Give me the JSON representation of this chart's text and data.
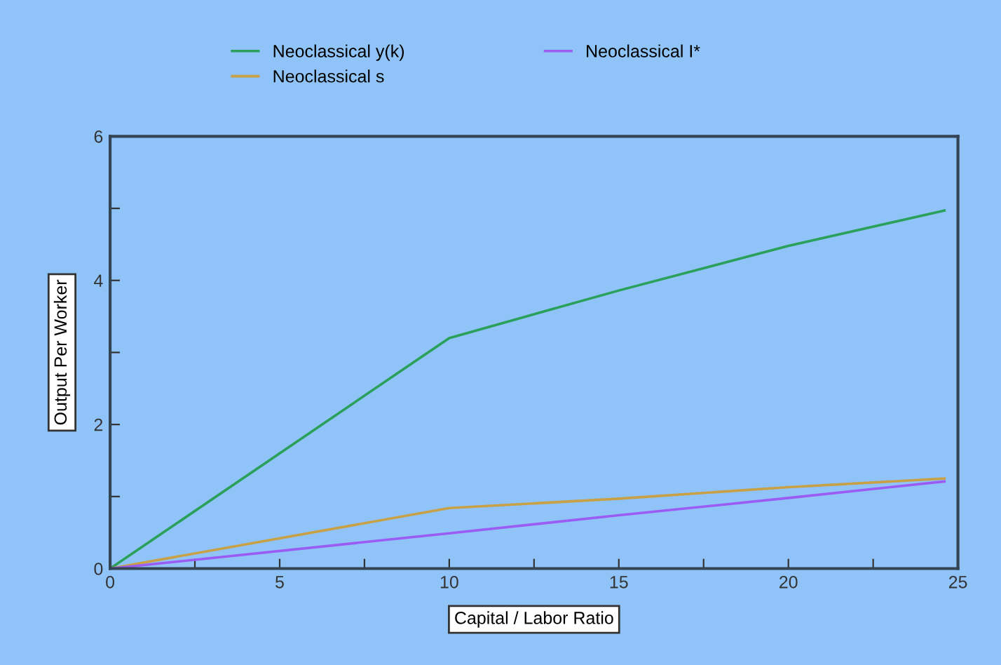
{
  "chart_data": {
    "type": "line",
    "xlabel": "Capital / Labor Ratio",
    "ylabel": "Output Per Worker",
    "x": [
      0,
      10,
      15,
      20,
      24.6
    ],
    "series": [
      {
        "name": "Neoclassical y(k)",
        "color": "#2aa05a",
        "values": [
          0,
          3.2,
          3.86,
          4.48,
          4.97
        ]
      },
      {
        "name": "Neoclassical s",
        "color": "#c8a046",
        "values": [
          0,
          0.84,
          0.97,
          1.13,
          1.25
        ]
      },
      {
        "name": "Neoclassical I*",
        "color": "#9a5cf2",
        "values": [
          0,
          0.49,
          0.74,
          0.98,
          1.21
        ]
      }
    ],
    "xlim": [
      0,
      25
    ],
    "ylim": [
      0,
      6
    ],
    "xticks": [
      0,
      {
        "value": 2.5,
        "label": null
      },
      5,
      {
        "value": 7.5,
        "label": null
      },
      10,
      {
        "value": 12.5,
        "label": null
      },
      15,
      {
        "value": 17.5,
        "label": null
      },
      20,
      {
        "value": 22.5,
        "label": null
      },
      25
    ],
    "yticks": [
      0,
      {
        "value": 1,
        "label": null
      },
      2,
      {
        "value": 3,
        "label": null
      },
      4,
      {
        "value": 5,
        "label": null
      },
      6
    ],
    "grid": false,
    "legend": "top",
    "marker": "none",
    "line_style": "solid"
  }
}
